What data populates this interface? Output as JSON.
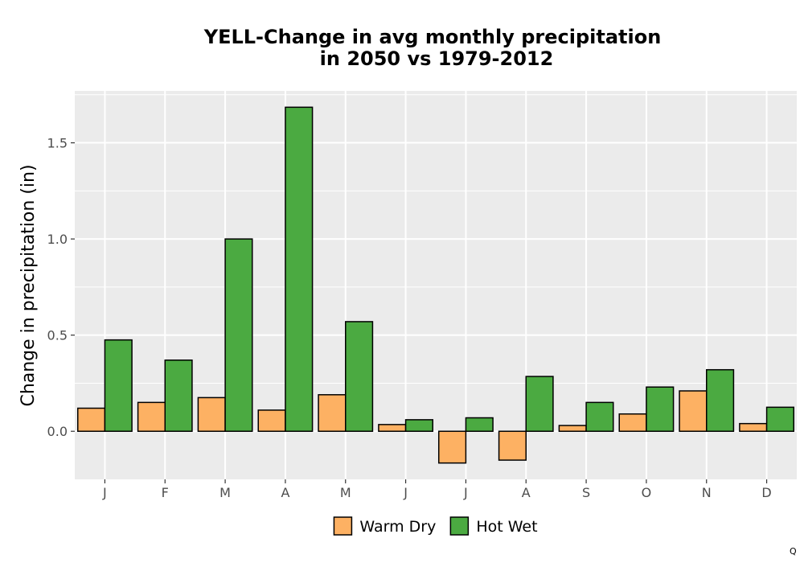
{
  "chart_data": {
    "type": "bar",
    "title_lines": [
      "YELL-Change in avg monthly precipitation",
      "in 2050 vs 1979-2012"
    ],
    "xlabel": "",
    "ylabel": "Change in precipitation (in)",
    "categories": [
      "J",
      "F",
      "M",
      "A",
      "M",
      "J",
      "J",
      "A",
      "S",
      "O",
      "N",
      "D"
    ],
    "series": [
      {
        "name": "Warm Dry",
        "color": "#FDB163",
        "values": [
          0.12,
          0.15,
          0.175,
          0.11,
          0.19,
          0.035,
          -0.165,
          -0.15,
          0.03,
          0.09,
          0.21,
          0.04
        ]
      },
      {
        "name": "Hot Wet",
        "color": "#4BAA41",
        "values": [
          0.475,
          0.37,
          1.0,
          1.685,
          0.57,
          0.06,
          0.07,
          0.285,
          0.15,
          0.23,
          0.32,
          0.125
        ]
      }
    ],
    "ylim": [
      -0.25,
      1.77
    ],
    "yticks": [
      0.0,
      0.5,
      1.0,
      1.5
    ],
    "ytick_labels": [
      "0.0",
      "0.5",
      "1.0",
      "1.5"
    ],
    "grid": true,
    "legend_position": "bottom",
    "panel_background": "#EBEBEB"
  },
  "corner_mark": "Q"
}
